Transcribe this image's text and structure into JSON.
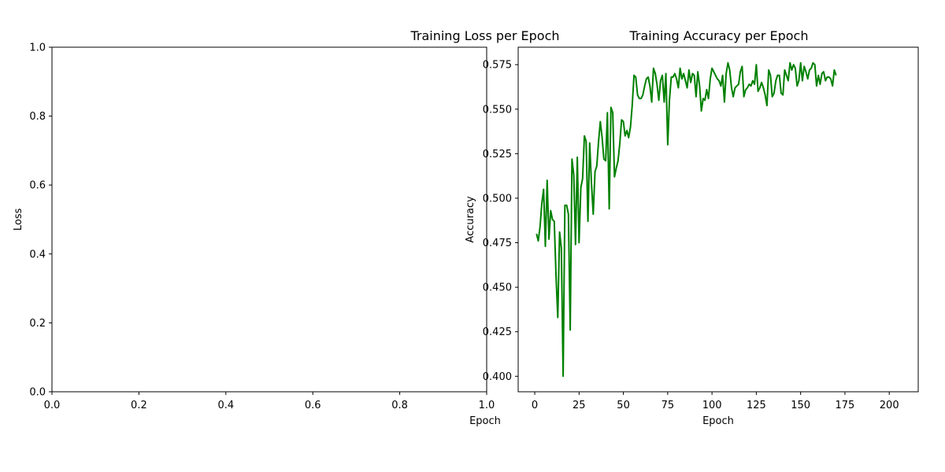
{
  "chart_data": [
    {
      "type": "line",
      "title": "Training Loss per Epoch",
      "xlabel": "Epoch",
      "ylabel": "Loss",
      "xlim": [
        0,
        1
      ],
      "ylim": [
        0,
        1
      ],
      "xticks": [
        "0.0",
        "0.2",
        "0.4",
        "0.6",
        "0.8",
        "1.0"
      ],
      "yticks": [
        "0.0",
        "0.2",
        "0.4",
        "0.6",
        "0.8",
        "1.0"
      ],
      "series": [],
      "grid": false
    },
    {
      "type": "line",
      "title": "Training Accuracy per Epoch",
      "xlabel": "Epoch",
      "ylabel": "Accuracy",
      "xlim": [
        -9.35,
        216.35
      ],
      "ylim": [
        0.3913,
        0.5848
      ],
      "xticks": [
        {
          "value": 0,
          "label": "0"
        },
        {
          "value": 25,
          "label": "25"
        },
        {
          "value": 50,
          "label": "50"
        },
        {
          "value": 75,
          "label": "75"
        },
        {
          "value": 100,
          "label": "100"
        },
        {
          "value": 125,
          "label": "125"
        },
        {
          "value": 150,
          "label": "150"
        },
        {
          "value": 175,
          "label": "175"
        },
        {
          "value": 200,
          "label": "200"
        }
      ],
      "yticks": [
        "0.400",
        "0.425",
        "0.450",
        "0.475",
        "0.500",
        "0.525",
        "0.550",
        "0.575"
      ],
      "grid": false,
      "series": [
        {
          "color": "#008000",
          "x_start": 1,
          "x_step": 1,
          "values": [
            0.48,
            0.476,
            0.484,
            0.497,
            0.505,
            0.473,
            0.51,
            0.477,
            0.493,
            0.488,
            0.487,
            0.456,
            0.433,
            0.481,
            0.472,
            0.4,
            0.496,
            0.496,
            0.491,
            0.426,
            0.522,
            0.513,
            0.474,
            0.523,
            0.475,
            0.506,
            0.511,
            0.535,
            0.532,
            0.487,
            0.531,
            0.508,
            0.491,
            0.515,
            0.518,
            0.532,
            0.543,
            0.534,
            0.522,
            0.521,
            0.548,
            0.494,
            0.551,
            0.548,
            0.512,
            0.517,
            0.521,
            0.531,
            0.544,
            0.543,
            0.535,
            0.538,
            0.534,
            0.54,
            0.552,
            0.569,
            0.568,
            0.558,
            0.556,
            0.556,
            0.558,
            0.563,
            0.567,
            0.568,
            0.563,
            0.554,
            0.573,
            0.57,
            0.564,
            0.555,
            0.566,
            0.569,
            0.554,
            0.57,
            0.53,
            0.555,
            0.568,
            0.568,
            0.57,
            0.567,
            0.562,
            0.573,
            0.567,
            0.57,
            0.566,
            0.562,
            0.572,
            0.565,
            0.57,
            0.569,
            0.557,
            0.571,
            0.563,
            0.549,
            0.556,
            0.555,
            0.561,
            0.556,
            0.567,
            0.573,
            0.571,
            0.569,
            0.567,
            0.566,
            0.563,
            0.569,
            0.554,
            0.57,
            0.576,
            0.572,
            0.562,
            0.557,
            0.562,
            0.563,
            0.564,
            0.571,
            0.574,
            0.557,
            0.561,
            0.562,
            0.564,
            0.563,
            0.566,
            0.564,
            0.575,
            0.56,
            0.562,
            0.565,
            0.562,
            0.558,
            0.552,
            0.572,
            0.569,
            0.557,
            0.559,
            0.566,
            0.569,
            0.569,
            0.559,
            0.558,
            0.572,
            0.569,
            0.566,
            0.576,
            0.572,
            0.575,
            0.573,
            0.563,
            0.566,
            0.576,
            0.566,
            0.574,
            0.571,
            0.567,
            0.572,
            0.573,
            0.576,
            0.575,
            0.563,
            0.569,
            0.564,
            0.57,
            0.571,
            0.566,
            0.568,
            0.568,
            0.567,
            0.563,
            0.572,
            0.569
          ]
        }
      ]
    }
  ]
}
